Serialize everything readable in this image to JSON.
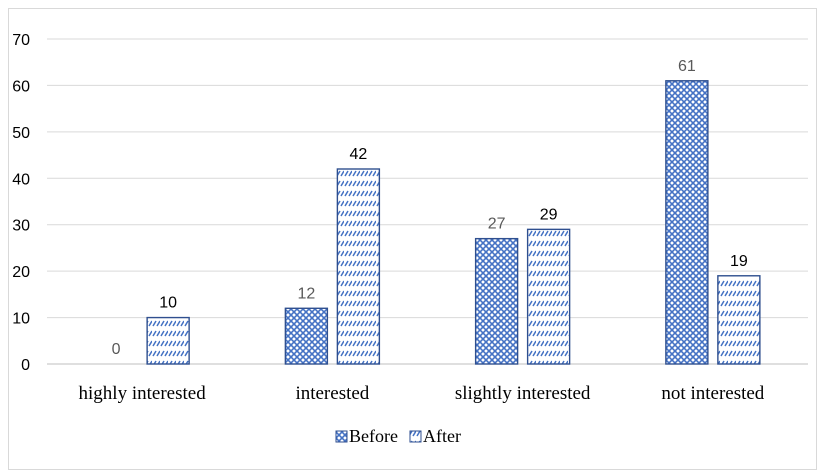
{
  "chart_data": {
    "type": "bar",
    "categories": [
      "highly interested",
      "interested",
      "slightly interested",
      "not interested"
    ],
    "series": [
      {
        "name": "Before",
        "values": [
          0,
          12,
          27,
          61
        ],
        "pattern": "crosshatch",
        "label_color": "#595959"
      },
      {
        "name": "After",
        "values": [
          10,
          42,
          29,
          19
        ],
        "pattern": "diagonal-dash",
        "label_color": "#000000"
      }
    ],
    "ylim": [
      0,
      70
    ],
    "yticks": [
      "0",
      "10",
      "20",
      "30",
      "40",
      "50",
      "60",
      "70"
    ],
    "grid": true,
    "legend": "bottom",
    "colors": {
      "bar_fill": "#4472c4",
      "bar_outline": "#2f4f8f",
      "grid": "#d9d9d9",
      "axis": "#bfbfbf"
    }
  }
}
